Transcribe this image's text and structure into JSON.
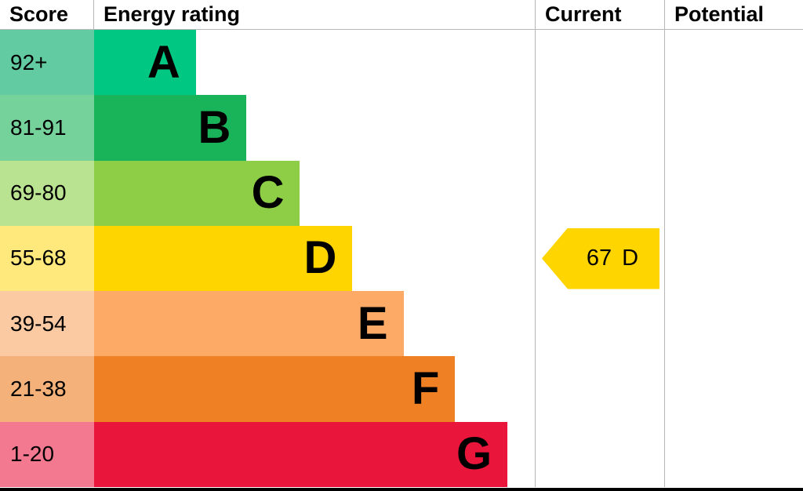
{
  "chart_data": {
    "type": "bar",
    "title": "Energy rating",
    "columns": {
      "score": "Score",
      "rating": "Energy rating",
      "current": "Current",
      "potential": "Potential"
    },
    "bands": [
      {
        "score": "92+",
        "letter": "A",
        "color": "#00c781",
        "tint": "#63cba2",
        "width_pct": 23.1
      },
      {
        "score": "81-91",
        "letter": "B",
        "color": "#19b459",
        "tint": "#75d29b",
        "width_pct": 34.6
      },
      {
        "score": "69-80",
        "letter": "C",
        "color": "#8dce46",
        "tint": "#b9e291",
        "width_pct": 46.7
      },
      {
        "score": "55-68",
        "letter": "D",
        "color": "#ffd500",
        "tint": "#ffe87c",
        "width_pct": 58.6
      },
      {
        "score": "39-54",
        "letter": "E",
        "color": "#fcaa65",
        "tint": "#fbc9a2",
        "width_pct": 70.2
      },
      {
        "score": "21-38",
        "letter": "F",
        "color": "#ef8023",
        "tint": "#f4b179",
        "width_pct": 81.9
      },
      {
        "score": "1-20",
        "letter": "G",
        "color": "#e9153b",
        "tint": "#f2798f",
        "width_pct": 93.8
      }
    ],
    "current_marker": {
      "value": "67",
      "letter": "D",
      "band": "D",
      "color": "#ffd500"
    },
    "potential_marker": null,
    "layout": {
      "legend": false,
      "grid": false,
      "x_range": [
        1,
        100
      ]
    }
  }
}
